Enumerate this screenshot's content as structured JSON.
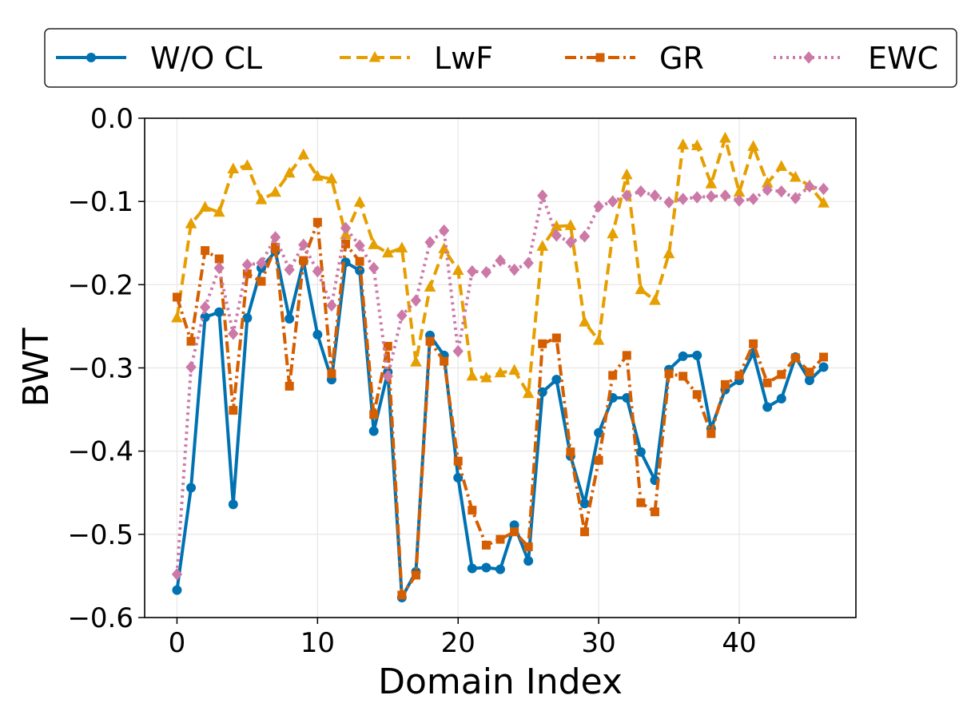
{
  "chart_data": {
    "type": "line",
    "title": "",
    "xlabel": "Domain Index",
    "ylabel": "BWT",
    "xlim": [
      -2.3,
      48.3
    ],
    "ylim": [
      -0.6,
      0.0
    ],
    "xticks": [
      0,
      10,
      20,
      30,
      40
    ],
    "xtick_labels": [
      "0",
      "10",
      "20",
      "30",
      "40"
    ],
    "yticks": [
      -0.6,
      -0.5,
      -0.4,
      -0.3,
      -0.2,
      -0.1,
      0.0
    ],
    "ytick_labels": [
      "−0.6",
      "−0.5",
      "−0.4",
      "−0.3",
      "−0.2",
      "−0.1",
      "0.0"
    ],
    "grid": true,
    "legend_position": "top, outside plot, single row",
    "x": [
      0,
      1,
      2,
      3,
      4,
      5,
      6,
      7,
      8,
      9,
      10,
      11,
      12,
      13,
      14,
      15,
      16,
      17,
      18,
      19,
      20,
      21,
      22,
      23,
      24,
      25,
      26,
      27,
      28,
      29,
      30,
      31,
      32,
      33,
      34,
      35,
      36,
      37,
      38,
      39,
      40,
      41,
      42,
      43,
      44,
      45,
      46
    ],
    "series": [
      {
        "name": "W/O CL",
        "color": "#0072b2",
        "linestyle": "solid",
        "marker": "circle",
        "values": [
          -0.567,
          -0.444,
          -0.239,
          -0.233,
          -0.464,
          -0.24,
          -0.18,
          -0.16,
          -0.241,
          -0.172,
          -0.26,
          -0.314,
          -0.173,
          -0.183,
          -0.376,
          -0.305,
          -0.576,
          -0.545,
          -0.261,
          -0.285,
          -0.432,
          -0.541,
          -0.54,
          -0.542,
          -0.489,
          -0.532,
          -0.329,
          -0.314,
          -0.406,
          -0.463,
          -0.378,
          -0.336,
          -0.336,
          -0.401,
          -0.435,
          -0.302,
          -0.286,
          -0.285,
          -0.373,
          -0.326,
          -0.315,
          -0.282,
          -0.347,
          -0.337,
          -0.287,
          -0.315,
          -0.299
        ]
      },
      {
        "name": "LwF",
        "color": "#e69f00",
        "linestyle": "dashed",
        "marker": "triangle",
        "values": [
          -0.24,
          -0.127,
          -0.107,
          -0.113,
          -0.061,
          -0.057,
          -0.098,
          -0.089,
          -0.066,
          -0.044,
          -0.07,
          -0.073,
          -0.14,
          -0.101,
          -0.152,
          -0.162,
          -0.156,
          -0.293,
          -0.203,
          -0.157,
          -0.183,
          -0.31,
          -0.312,
          -0.306,
          -0.303,
          -0.331,
          -0.154,
          -0.13,
          -0.129,
          -0.245,
          -0.267,
          -0.139,
          -0.068,
          -0.206,
          -0.219,
          -0.163,
          -0.032,
          -0.033,
          -0.079,
          -0.024,
          -0.089,
          -0.034,
          -0.078,
          -0.058,
          -0.071,
          -0.081,
          -0.102
        ]
      },
      {
        "name": "GR",
        "color": "#d55e00",
        "linestyle": "dashdot",
        "marker": "square",
        "values": [
          -0.215,
          -0.268,
          -0.159,
          -0.169,
          -0.351,
          -0.187,
          -0.196,
          -0.155,
          -0.322,
          -0.171,
          -0.125,
          -0.307,
          -0.151,
          -0.172,
          -0.356,
          -0.274,
          -0.573,
          -0.549,
          -0.268,
          -0.292,
          -0.412,
          -0.471,
          -0.513,
          -0.506,
          -0.497,
          -0.515,
          -0.271,
          -0.264,
          -0.401,
          -0.497,
          -0.411,
          -0.309,
          -0.285,
          -0.462,
          -0.473,
          -0.307,
          -0.31,
          -0.332,
          -0.379,
          -0.32,
          -0.309,
          -0.271,
          -0.318,
          -0.308,
          -0.288,
          -0.305,
          -0.287
        ]
      },
      {
        "name": "EWC",
        "color": "#cc79a7",
        "linestyle": "dotted",
        "marker": "diamond",
        "values": [
          -0.548,
          -0.299,
          -0.227,
          -0.18,
          -0.259,
          -0.176,
          -0.174,
          -0.143,
          -0.182,
          -0.152,
          -0.184,
          -0.225,
          -0.132,
          -0.153,
          -0.18,
          -0.31,
          -0.237,
          -0.219,
          -0.149,
          -0.135,
          -0.28,
          -0.184,
          -0.185,
          -0.171,
          -0.182,
          -0.174,
          -0.093,
          -0.141,
          -0.149,
          -0.142,
          -0.106,
          -0.1,
          -0.093,
          -0.088,
          -0.093,
          -0.101,
          -0.097,
          -0.095,
          -0.094,
          -0.093,
          -0.099,
          -0.097,
          -0.086,
          -0.088,
          -0.096,
          -0.082,
          -0.085
        ]
      }
    ]
  }
}
